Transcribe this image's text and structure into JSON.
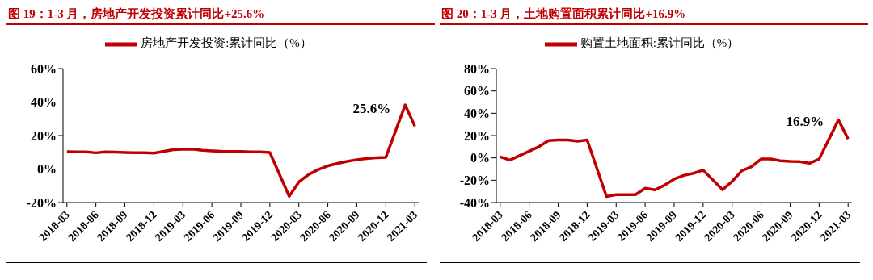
{
  "chart_data": [
    {
      "type": "line",
      "title": "图 19：1-3 月，房地产开发投资累计同比+25.6%",
      "categories": [
        "2018-03",
        null,
        null,
        "2018-06",
        null,
        null,
        "2018-09",
        null,
        null,
        "2018-12",
        null,
        null,
        "2019-03",
        null,
        null,
        "2019-06",
        null,
        null,
        "2019-09",
        null,
        null,
        "2019-12",
        null,
        null,
        "2020-03",
        null,
        null,
        "2020-06",
        null,
        null,
        "2020-09",
        null,
        null,
        "2020-12",
        null,
        null,
        "2021-03"
      ],
      "series": [
        {
          "name": "房地产开发投资:累计同比（%）",
          "color": "#c00000",
          "values": [
            10.4,
            10.3,
            10.2,
            9.7,
            10.2,
            10.1,
            9.9,
            9.7,
            9.7,
            9.5,
            null,
            11.6,
            11.8,
            11.9,
            11.2,
            10.9,
            10.6,
            10.5,
            10.5,
            10.3,
            10.2,
            9.9,
            null,
            -16.3,
            -7.7,
            -3.3,
            -0.3,
            1.9,
            3.4,
            4.6,
            5.6,
            6.3,
            6.8,
            7.0,
            null,
            38.3,
            25.6
          ]
        }
      ],
      "ylim": [
        -20,
        60
      ],
      "yticks": [
        {
          "value": -20,
          "label": "-20%"
        },
        {
          "value": 0,
          "label": "0%"
        },
        {
          "value": 20,
          "label": "20%"
        },
        {
          "value": 40,
          "label": "40%"
        },
        {
          "value": 60,
          "label": "60%"
        }
      ],
      "grid": false,
      "legend": "top",
      "marker": "none",
      "line_style": "solid",
      "annotations": [
        {
          "text": "25.6%",
          "x": "2021-03",
          "y": 25.6
        }
      ]
    },
    {
      "type": "line",
      "title": "图 20：1-3 月，土地购置面积累计同比+16.9%",
      "categories": [
        "2018-03",
        null,
        null,
        "2018-06",
        null,
        null,
        "2018-09",
        null,
        null,
        "2018-12",
        null,
        null,
        "2019-03",
        null,
        null,
        "2019-06",
        null,
        null,
        "2019-09",
        null,
        null,
        "2019-12",
        null,
        null,
        "2020-03",
        null,
        null,
        "2020-06",
        null,
        null,
        "2020-09",
        null,
        null,
        "2020-12",
        null,
        null,
        "2021-03"
      ],
      "series": [
        {
          "name": "购置土地面积:累计同比（%）",
          "color": "#c00000",
          "values": [
            1,
            -2,
            2,
            6,
            10,
            15.5,
            16,
            16,
            15,
            16,
            null,
            -34.6,
            -33,
            -33,
            -33,
            -27.2,
            -28.6,
            -24.5,
            -19,
            -15.7,
            -13.8,
            -11,
            null,
            -28.5,
            -21,
            -11.5,
            -8,
            -1,
            -1,
            -2.6,
            -3.1,
            -3.4,
            -4.8,
            -1.1,
            null,
            34,
            16.9
          ]
        }
      ],
      "ylim": [
        -40,
        80
      ],
      "yticks": [
        {
          "value": -40,
          "label": "-40%"
        },
        {
          "value": -20,
          "label": "-20%"
        },
        {
          "value": 0,
          "label": "0%"
        },
        {
          "value": 20,
          "label": "20%"
        },
        {
          "value": 40,
          "label": "40%"
        },
        {
          "value": 60,
          "label": "60%"
        },
        {
          "value": 80,
          "label": "80%"
        }
      ],
      "grid": false,
      "legend": "top",
      "marker": "none",
      "line_style": "solid",
      "annotations": [
        {
          "text": "16.9%",
          "x": "2021-03",
          "y": 16.9
        }
      ]
    }
  ]
}
